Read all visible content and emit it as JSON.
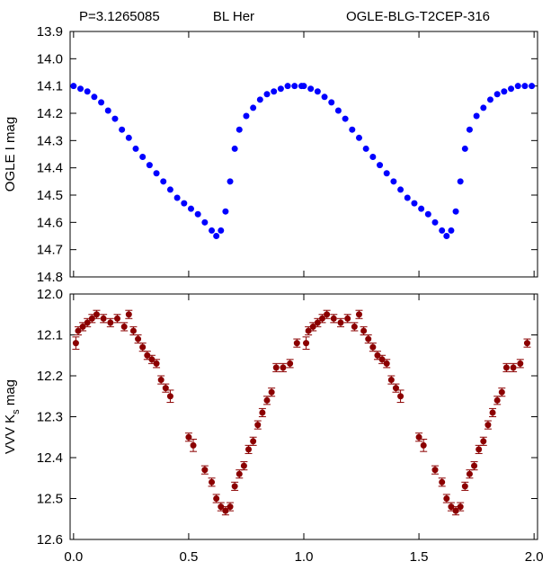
{
  "chart_data": [
    {
      "type": "scatter",
      "annotations": [
        "P=3.1265085",
        "BL Her",
        "OGLE-BLG-T2CEP-316"
      ],
      "ylabel": "OGLE I mag",
      "color": "#0000ff",
      "inverted": true,
      "x": [
        0,
        0.03,
        0.06,
        0.09,
        0.12,
        0.15,
        0.18,
        0.21,
        0.24,
        0.27,
        0.3,
        0.33,
        0.36,
        0.39,
        0.42,
        0.45,
        0.48,
        0.51,
        0.54,
        0.57,
        0.6,
        0.62,
        0.64,
        0.66,
        0.68,
        0.7,
        0.72,
        0.75,
        0.78,
        0.81,
        0.84,
        0.87,
        0.9,
        0.93,
        0.96,
        0.99,
        1,
        1.03,
        1.06,
        1.09,
        1.12,
        1.15,
        1.18,
        1.21,
        1.24,
        1.27,
        1.3,
        1.33,
        1.36,
        1.39,
        1.42,
        1.45,
        1.48,
        1.51,
        1.54,
        1.57,
        1.6,
        1.62,
        1.64,
        1.66,
        1.68,
        1.7,
        1.72,
        1.75,
        1.78,
        1.81,
        1.84,
        1.87,
        1.9,
        1.93,
        1.96,
        1.99
      ],
      "values": [
        14.1,
        14.11,
        14.12,
        14.14,
        14.16,
        14.19,
        14.22,
        14.26,
        14.29,
        14.33,
        14.36,
        14.39,
        14.42,
        14.45,
        14.48,
        14.51,
        14.53,
        14.55,
        14.57,
        14.6,
        14.63,
        14.65,
        14.63,
        14.56,
        14.45,
        14.33,
        14.26,
        14.21,
        14.18,
        14.15,
        14.13,
        14.12,
        14.11,
        14.1,
        14.1,
        14.1,
        14.1,
        14.11,
        14.12,
        14.14,
        14.16,
        14.19,
        14.22,
        14.26,
        14.29,
        14.33,
        14.36,
        14.39,
        14.42,
        14.45,
        14.48,
        14.51,
        14.53,
        14.55,
        14.57,
        14.6,
        14.63,
        14.65,
        14.63,
        14.56,
        14.45,
        14.33,
        14.26,
        14.21,
        14.18,
        14.15,
        14.13,
        14.12,
        14.11,
        14.1,
        14.1,
        14.1
      ],
      "xlim": [
        -0.015,
        2.015
      ],
      "ylim": [
        13.9,
        14.8
      ],
      "xticks": [
        0,
        0.5,
        1,
        1.5,
        2
      ],
      "yticks": [
        13.9,
        {
          "value": 14,
          "label": "14.0"
        },
        14.1,
        14.2,
        14.3,
        14.4,
        14.5,
        14.6,
        14.7,
        14.8
      ]
    },
    {
      "type": "errorbar",
      "ylabel": [
        "VVV K",
        "s",
        " mag"
      ],
      "color": "#8b0000",
      "inverted": true,
      "x": [
        0.01,
        0.02,
        0.04,
        0.06,
        0.08,
        0.1,
        0.13,
        0.16,
        0.19,
        0.22,
        0.24,
        0.26,
        0.28,
        0.3,
        0.32,
        0.34,
        0.36,
        0.38,
        0.4,
        0.42,
        0.5,
        0.52,
        0.57,
        0.6,
        0.62,
        0.64,
        0.66,
        0.68,
        0.7,
        0.72,
        0.74,
        0.76,
        0.78,
        0.8,
        0.82,
        0.84,
        0.86,
        0.88,
        0.91,
        0.94,
        0.97,
        1.01,
        1.02,
        1.04,
        1.06,
        1.08,
        1.1,
        1.13,
        1.16,
        1.19,
        1.22,
        1.24,
        1.26,
        1.28,
        1.3,
        1.32,
        1.34,
        1.36,
        1.38,
        1.4,
        1.42,
        1.5,
        1.52,
        1.57,
        1.6,
        1.62,
        1.64,
        1.66,
        1.68,
        1.7,
        1.72,
        1.74,
        1.76,
        1.78,
        1.8,
        1.82,
        1.84,
        1.86,
        1.88,
        1.91,
        1.94,
        1.97
      ],
      "values": [
        12.12,
        12.09,
        12.08,
        12.07,
        12.06,
        12.05,
        12.06,
        12.07,
        12.06,
        12.08,
        12.05,
        12.09,
        12.11,
        12.13,
        12.15,
        12.16,
        12.17,
        12.21,
        12.23,
        12.25,
        12.35,
        12.37,
        12.43,
        12.46,
        12.5,
        12.52,
        12.53,
        12.52,
        12.47,
        12.44,
        12.42,
        12.38,
        12.36,
        12.32,
        12.29,
        12.26,
        12.24,
        12.18,
        12.18,
        12.17,
        12.12,
        12.12,
        12.09,
        12.08,
        12.07,
        12.06,
        12.05,
        12.06,
        12.07,
        12.06,
        12.08,
        12.05,
        12.09,
        12.11,
        12.13,
        12.15,
        12.16,
        12.17,
        12.21,
        12.23,
        12.25,
        12.35,
        12.37,
        12.43,
        12.46,
        12.5,
        12.52,
        12.53,
        12.52,
        12.47,
        12.44,
        12.42,
        12.38,
        12.36,
        12.32,
        12.29,
        12.26,
        12.24,
        12.18,
        12.18,
        12.17,
        12.12
      ],
      "errors": [
        0.015,
        0.01,
        0.01,
        0.01,
        0.01,
        0.01,
        0.01,
        0.01,
        0.01,
        0.01,
        0.01,
        0.01,
        0.01,
        0.01,
        0.01,
        0.01,
        0.01,
        0.01,
        0.01,
        0.015,
        0.01,
        0.015,
        0.01,
        0.01,
        0.01,
        0.01,
        0.01,
        0.01,
        0.01,
        0.01,
        0.01,
        0.01,
        0.01,
        0.01,
        0.01,
        0.01,
        0.01,
        0.01,
        0.01,
        0.01,
        0.01,
        0.015,
        0.01,
        0.01,
        0.01,
        0.01,
        0.01,
        0.01,
        0.01,
        0.01,
        0.01,
        0.01,
        0.01,
        0.01,
        0.01,
        0.01,
        0.01,
        0.01,
        0.01,
        0.01,
        0.015,
        0.01,
        0.015,
        0.01,
        0.01,
        0.01,
        0.01,
        0.01,
        0.01,
        0.01,
        0.01,
        0.01,
        0.01,
        0.01,
        0.01,
        0.01,
        0.01,
        0.01,
        0.01,
        0.01,
        0.01,
        0.01
      ],
      "xlim": [
        -0.015,
        2.015
      ],
      "ylim": [
        12.0,
        12.6
      ],
      "xticks": [
        {
          "value": 0,
          "label": "0.0"
        },
        0.5,
        {
          "value": 1,
          "label": "1.0"
        },
        1.5,
        {
          "value": 2,
          "label": "2.0"
        }
      ],
      "yticks": [
        {
          "value": 12,
          "label": "12.0"
        },
        12.1,
        12.2,
        12.3,
        12.4,
        12.5,
        12.6
      ]
    }
  ]
}
